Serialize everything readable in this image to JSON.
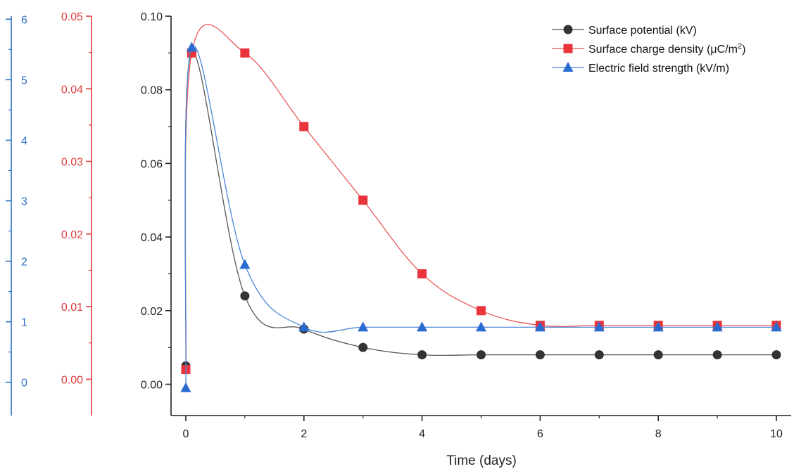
{
  "chart_data": {
    "type": "line",
    "xlabel": "Time (days)",
    "xlim": [
      -0.25,
      10.25
    ],
    "xticks": [
      0,
      2,
      4,
      6,
      8,
      10
    ],
    "x": [
      0,
      0.1,
      1,
      2,
      3,
      4,
      5,
      6,
      7,
      8,
      9,
      10
    ],
    "grid": false,
    "legend_position": "top-right",
    "axes": [
      {
        "id": "blue",
        "color": "#2e6fc4",
        "ylim": [
          -0.55,
          6.05
        ],
        "ticks": [
          0,
          1,
          2,
          3,
          4,
          5,
          6
        ],
        "tick_labels": [
          "0",
          "1",
          "2",
          "3",
          "4",
          "5",
          "6"
        ]
      },
      {
        "id": "red",
        "color": "#e03c3c",
        "ylim": [
          -0.005,
          0.05
        ],
        "ticks": [
          0,
          0.01,
          0.02,
          0.03,
          0.04,
          0.05
        ],
        "tick_labels": [
          "0.00",
          "0.01",
          "0.02",
          "0.03",
          "0.04",
          "0.05"
        ]
      },
      {
        "id": "main",
        "color": "#222222",
        "ylim": [
          -0.0085,
          0.1
        ],
        "ticks": [
          0,
          0.02,
          0.04,
          0.06,
          0.08,
          0.1
        ],
        "tick_labels": [
          "0.00",
          "0.02",
          "0.04",
          "0.06",
          "0.08",
          "0.10"
        ]
      }
    ],
    "series": [
      {
        "name": "Surface potential (kV)",
        "legend_sup": "",
        "legend_suffix": "",
        "axis": "main",
        "color": "#333333",
        "line_color": "#555555",
        "marker": "circle",
        "values": [
          0.005,
          0.09,
          0.024,
          0.015,
          0.01,
          0.008,
          0.008,
          0.008,
          0.008,
          0.008,
          0.008,
          0.008
        ]
      },
      {
        "name": "Surface charge density (μC/m",
        "legend_sup": "2",
        "legend_suffix": ")",
        "axis": "main",
        "color": "#e8343a",
        "line_color": "#e85a5a",
        "marker": "square",
        "values": [
          0.004,
          0.09,
          0.09,
          0.07,
          0.05,
          0.03,
          0.02,
          0.016,
          0.016,
          0.016,
          0.016,
          0.016
        ]
      },
      {
        "name": "Electric field strength (kV/m)",
        "legend_sup": "",
        "legend_suffix": "",
        "axis": "main",
        "color": "#2a6bd1",
        "line_color": "#4a86d8",
        "marker": "triangle",
        "values": [
          -0.001,
          0.0915,
          0.0325,
          0.0155,
          0.0155,
          0.0155,
          0.0155,
          0.0155,
          0.0155,
          0.0155,
          0.0155,
          0.0155
        ]
      }
    ]
  }
}
